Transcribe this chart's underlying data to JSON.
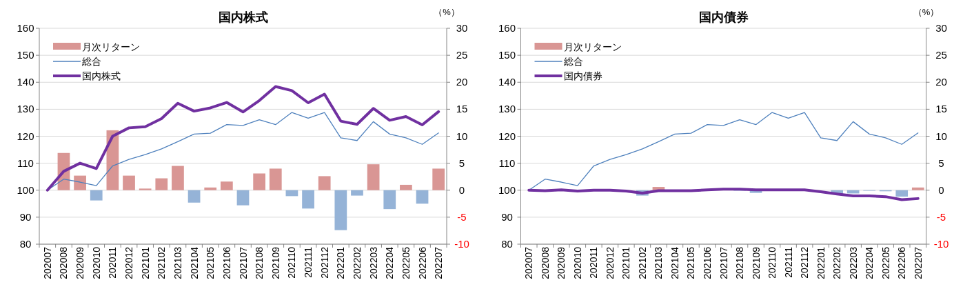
{
  "chart_data": [
    {
      "type": "bar",
      "title": "国内株式",
      "y2label": "（%）",
      "categories": [
        "202007",
        "202008",
        "202009",
        "202010",
        "202011",
        "202012",
        "202101",
        "202102",
        "202103",
        "202104",
        "202105",
        "202106",
        "202107",
        "202108",
        "202109",
        "202110",
        "202111",
        "202112",
        "202201",
        "202202",
        "202203",
        "202204",
        "202205",
        "202206",
        "202207"
      ],
      "ylim": [
        80,
        160
      ],
      "yticks": [
        80,
        90,
        100,
        110,
        120,
        130,
        140,
        150,
        160
      ],
      "y2lim": [
        -10,
        30
      ],
      "y2ticks": [
        -10,
        -5,
        0,
        5,
        10,
        15,
        20,
        25,
        30
      ],
      "grid": "y",
      "legend": "top left",
      "series": [
        {
          "name": "月次リターン",
          "axis": "y2",
          "color": "#d99694",
          "values": [
            null,
            6.9,
            2.7,
            -1.9,
            11.1,
            2.7,
            0.3,
            2.2,
            4.5,
            -2.3,
            0.5,
            1.6,
            -2.8,
            3.1,
            4.0,
            -1.1,
            -3.4,
            2.6,
            -7.4,
            -1.0,
            4.8,
            -3.5,
            1.0,
            -2.5,
            4.0
          ],
          "colors": [
            null,
            "#d99694",
            "#d99694",
            "#95b3d7",
            "#d99694",
            "#d99694",
            "#d99694",
            "#d99694",
            "#d99694",
            "#95b3d7",
            "#d99694",
            "#d99694",
            "#95b3d7",
            "#d99694",
            "#d99694",
            "#95b3d7",
            "#95b3d7",
            "#d99694",
            "#95b3d7",
            "#95b3d7",
            "#d99694",
            "#95b3d7",
            "#d99694",
            "#95b3d7",
            "#d99694"
          ]
        },
        {
          "name": "総合",
          "type": "line",
          "color": "#4f81bd",
          "values": [
            100,
            104.1,
            103,
            101.7,
            109,
            111.4,
            113.2,
            115.3,
            118,
            120.8,
            121.1,
            124.3,
            124,
            126.1,
            124.3,
            128.8,
            126.7,
            128.8,
            119.4,
            118.4,
            125.4,
            120.8,
            119.4,
            117,
            121.2
          ]
        },
        {
          "name": "国内株式",
          "type": "line",
          "color": "#7030a0",
          "values": [
            100,
            107,
            110,
            108,
            120,
            123.1,
            123.5,
            126.5,
            132.2,
            129.3,
            130.5,
            132.5,
            129,
            133.2,
            138.4,
            136.9,
            132.4,
            135.6,
            125.6,
            124.4,
            130.3,
            125.9,
            127.3,
            124.2,
            129.1
          ]
        }
      ]
    },
    {
      "type": "bar",
      "title": "国内債券",
      "y2label": "（%）",
      "categories": [
        "202007",
        "202008",
        "202009",
        "202010",
        "202011",
        "202012",
        "202101",
        "202102",
        "202103",
        "202104",
        "202105",
        "202106",
        "202107",
        "202108",
        "202109",
        "202110",
        "202111",
        "202112",
        "202201",
        "202202",
        "202203",
        "202204",
        "202205",
        "202206",
        "202207"
      ],
      "ylim": [
        80,
        160
      ],
      "yticks": [
        80,
        90,
        100,
        110,
        120,
        130,
        140,
        150,
        160
      ],
      "y2lim": [
        -10,
        30
      ],
      "y2ticks": [
        -10,
        -5,
        0,
        5,
        10,
        15,
        20,
        25,
        30
      ],
      "grid": "y",
      "legend": "top left",
      "series": [
        {
          "name": "月次リターン",
          "axis": "y2",
          "color": "#d99694",
          "values": [
            null,
            null,
            0.1,
            null,
            null,
            0,
            null,
            -1.0,
            0.6,
            0,
            0,
            0.1,
            null,
            -0.1,
            -0.5,
            0,
            0,
            0,
            null,
            -0.8,
            -0.6,
            -0.1,
            -0.2,
            -1.2,
            0.5
          ],
          "colors": [
            null,
            null,
            "#d99694",
            null,
            null,
            "#d99694",
            null,
            "#95b3d7",
            "#d99694",
            "#d99694",
            "#d99694",
            "#d99694",
            null,
            "#95b3d7",
            "#95b3d7",
            "#d99694",
            "#d99694",
            "#d99694",
            null,
            "#95b3d7",
            "#95b3d7",
            "#95b3d7",
            "#95b3d7",
            "#95b3d7",
            "#d99694"
          ]
        },
        {
          "name": "総合",
          "type": "line",
          "color": "#4f81bd",
          "values": [
            100,
            104.1,
            103,
            101.7,
            109,
            111.4,
            113.2,
            115.3,
            118,
            120.8,
            121.1,
            124.3,
            124,
            126.1,
            124.3,
            128.8,
            126.7,
            128.8,
            119.4,
            118.4,
            125.4,
            120.8,
            119.4,
            117,
            121.2
          ]
        },
        {
          "name": "国内債券",
          "type": "line",
          "color": "#7030a0",
          "values": [
            100,
            99.8,
            100.1,
            99.7,
            100,
            100,
            99.7,
            98.9,
            99.8,
            99.8,
            99.8,
            100.1,
            100.4,
            100.4,
            100.1,
            100.1,
            100.1,
            100.1,
            99.4,
            98.6,
            97.9,
            97.9,
            97.6,
            96.5,
            96.9
          ]
        }
      ]
    }
  ]
}
